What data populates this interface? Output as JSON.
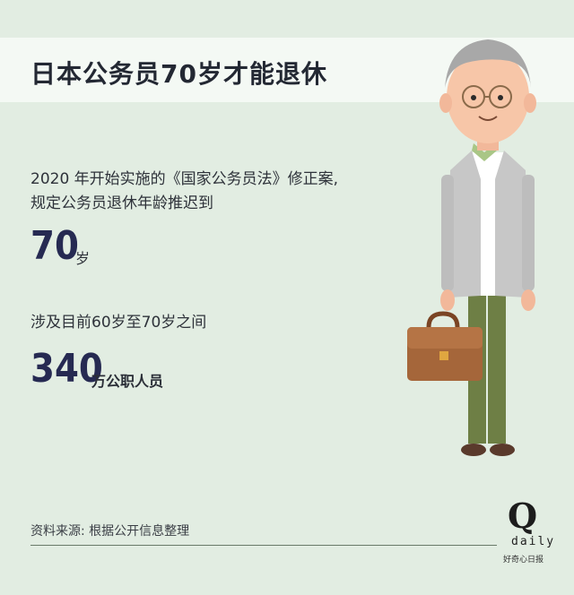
{
  "title": "日本公务员70岁才能退休",
  "intro": {
    "line1": "2020 年开始实施的《国家公务员法》修正案,",
    "line2": "规定公务员退休年龄推迟到"
  },
  "retire_age": {
    "value": "70",
    "unit": "岁"
  },
  "scope": "涉及目前60岁至70岁之间",
  "affected": {
    "value": "340",
    "unit": "万公职人员"
  },
  "source": "资料来源: 根据公开信息整理",
  "logo": {
    "letter": "Q",
    "word": "daily",
    "sub": "好奇心日报"
  },
  "colors": {
    "background": "#e2ede2",
    "title_band": "#f4f9f4",
    "number": "#262a52",
    "jacket": "#c7c7c7",
    "trousers": "#6e7f45",
    "briefcase": "#a5663a"
  }
}
